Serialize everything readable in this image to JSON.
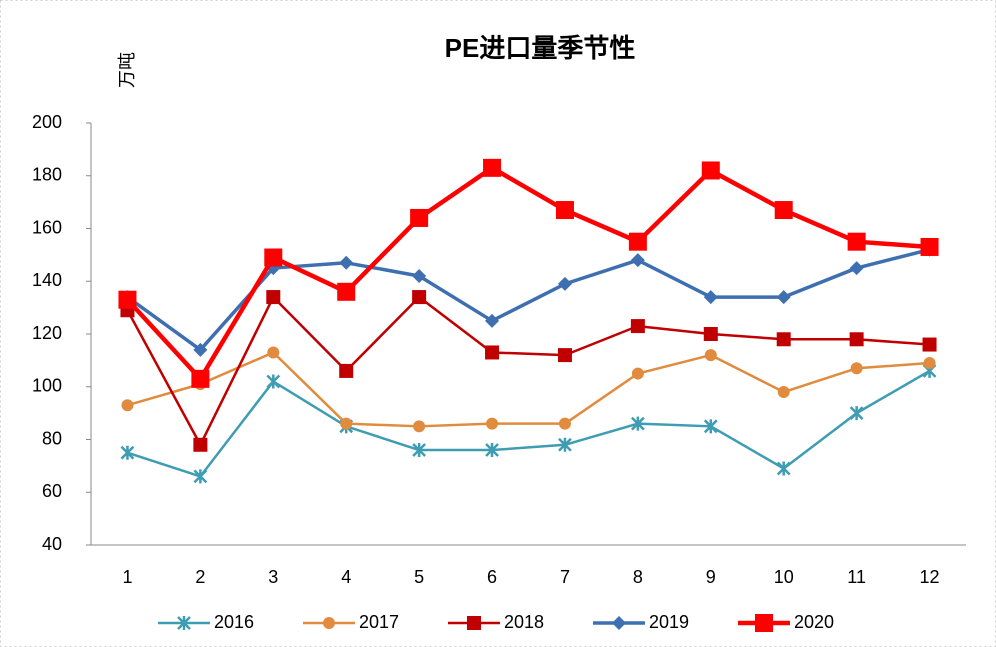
{
  "chart_data": {
    "type": "line",
    "title": "PE进口量季节性",
    "y_label": "万吨",
    "categories": [
      "1",
      "2",
      "3",
      "4",
      "5",
      "6",
      "7",
      "8",
      "9",
      "10",
      "11",
      "12"
    ],
    "ylim": [
      40,
      200
    ],
    "yticks": [
      40,
      60,
      80,
      100,
      120,
      140,
      160,
      180,
      200
    ],
    "grid": false,
    "legend": "bottom",
    "series": [
      {
        "name": "2016",
        "color": "#3f9db3",
        "marker": "asterisk",
        "values": [
          75,
          66,
          102,
          85,
          76,
          76,
          78,
          86,
          85,
          69,
          90,
          106
        ]
      },
      {
        "name": "2017",
        "color": "#e08b3e",
        "marker": "circle",
        "values": [
          93,
          101,
          113,
          86,
          85,
          86,
          86,
          105,
          112,
          98,
          107,
          109
        ]
      },
      {
        "name": "2018",
        "color": "#c00000",
        "marker": "square",
        "values": [
          129,
          78,
          134,
          106,
          134,
          113,
          112,
          123,
          120,
          118,
          118,
          116
        ]
      },
      {
        "name": "2019",
        "color": "#3e6fb0",
        "marker": "diamond",
        "values": [
          134,
          114,
          145,
          147,
          142,
          125,
          139,
          148,
          134,
          134,
          145,
          152
        ]
      },
      {
        "name": "2020",
        "color": "#ff0000",
        "marker": "bigsquare",
        "values": [
          133,
          103,
          149,
          136,
          164,
          183,
          167,
          155,
          182,
          167,
          155,
          153
        ]
      }
    ]
  }
}
